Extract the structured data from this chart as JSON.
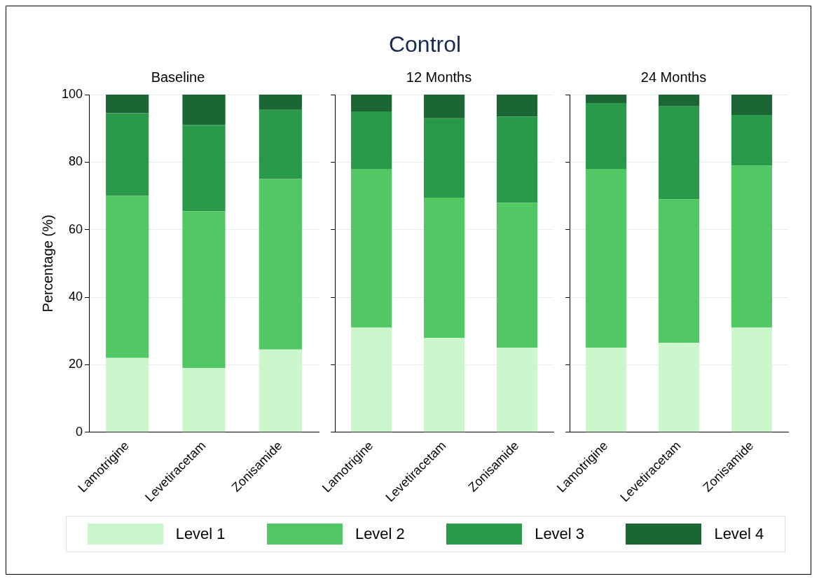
{
  "chart_data": [
    {
      "type": "bar",
      "subtitle": "Baseline",
      "ylabel": "Percentage (%)",
      "categories": [
        "Lamotrigine",
        "Levetiracetam",
        "Zonisamide"
      ],
      "stacked": true,
      "ylim": [
        0,
        100
      ],
      "yticks": [
        0,
        20,
        40,
        60,
        80,
        100
      ],
      "grid": "y",
      "legend": "bottom",
      "series": [
        {
          "name": "Level 1",
          "color": "#ccf7cc",
          "values": [
            22,
            19,
            24.5
          ]
        },
        {
          "name": "Level 2",
          "color": "#52c864",
          "values": [
            48,
            46.5,
            50.5
          ]
        },
        {
          "name": "Level 3",
          "color": "#2a9a4a",
          "values": [
            24.5,
            25.5,
            20.5
          ]
        },
        {
          "name": "Level 4",
          "color": "#1b6634",
          "values": [
            5.5,
            9,
            4.5
          ]
        }
      ]
    },
    {
      "type": "bar",
      "title": "Control",
      "subtitle": "12 Months",
      "categories": [
        "Lamotrigine",
        "Levetiracetam",
        "Zonisamide"
      ],
      "stacked": true,
      "ylim": [
        0,
        100
      ],
      "yticks": [
        0,
        20,
        40,
        60,
        80,
        100
      ],
      "grid": "y",
      "tick_labels": "x",
      "series": [
        {
          "color": "#ccf7cc",
          "values": [
            31,
            28,
            25
          ]
        },
        {
          "color": "#52c864",
          "values": [
            47,
            41.5,
            43
          ]
        },
        {
          "color": "#2a9a4a",
          "values": [
            17,
            23.5,
            25.5
          ]
        },
        {
          "color": "#1b6634",
          "values": [
            5,
            7,
            6.5
          ]
        }
      ]
    },
    {
      "type": "bar",
      "subtitle": "24 Months",
      "categories": [
        "Lamotrigine",
        "Levetiracetam",
        "Zonisamide"
      ],
      "stacked": true,
      "ylim": [
        0,
        100
      ],
      "yticks": [
        0,
        20,
        40,
        60,
        80,
        100
      ],
      "grid": "y",
      "tick_labels": "x",
      "series": [
        {
          "color": "#ccf7cc",
          "values": [
            25,
            26.5,
            31
          ]
        },
        {
          "color": "#52c864",
          "values": [
            53,
            42.5,
            48
          ]
        },
        {
          "color": "#2a9a4a",
          "values": [
            19.5,
            27.5,
            15
          ]
        },
        {
          "color": "#1b6634",
          "values": [
            2.5,
            3.5,
            6
          ]
        }
      ]
    }
  ]
}
